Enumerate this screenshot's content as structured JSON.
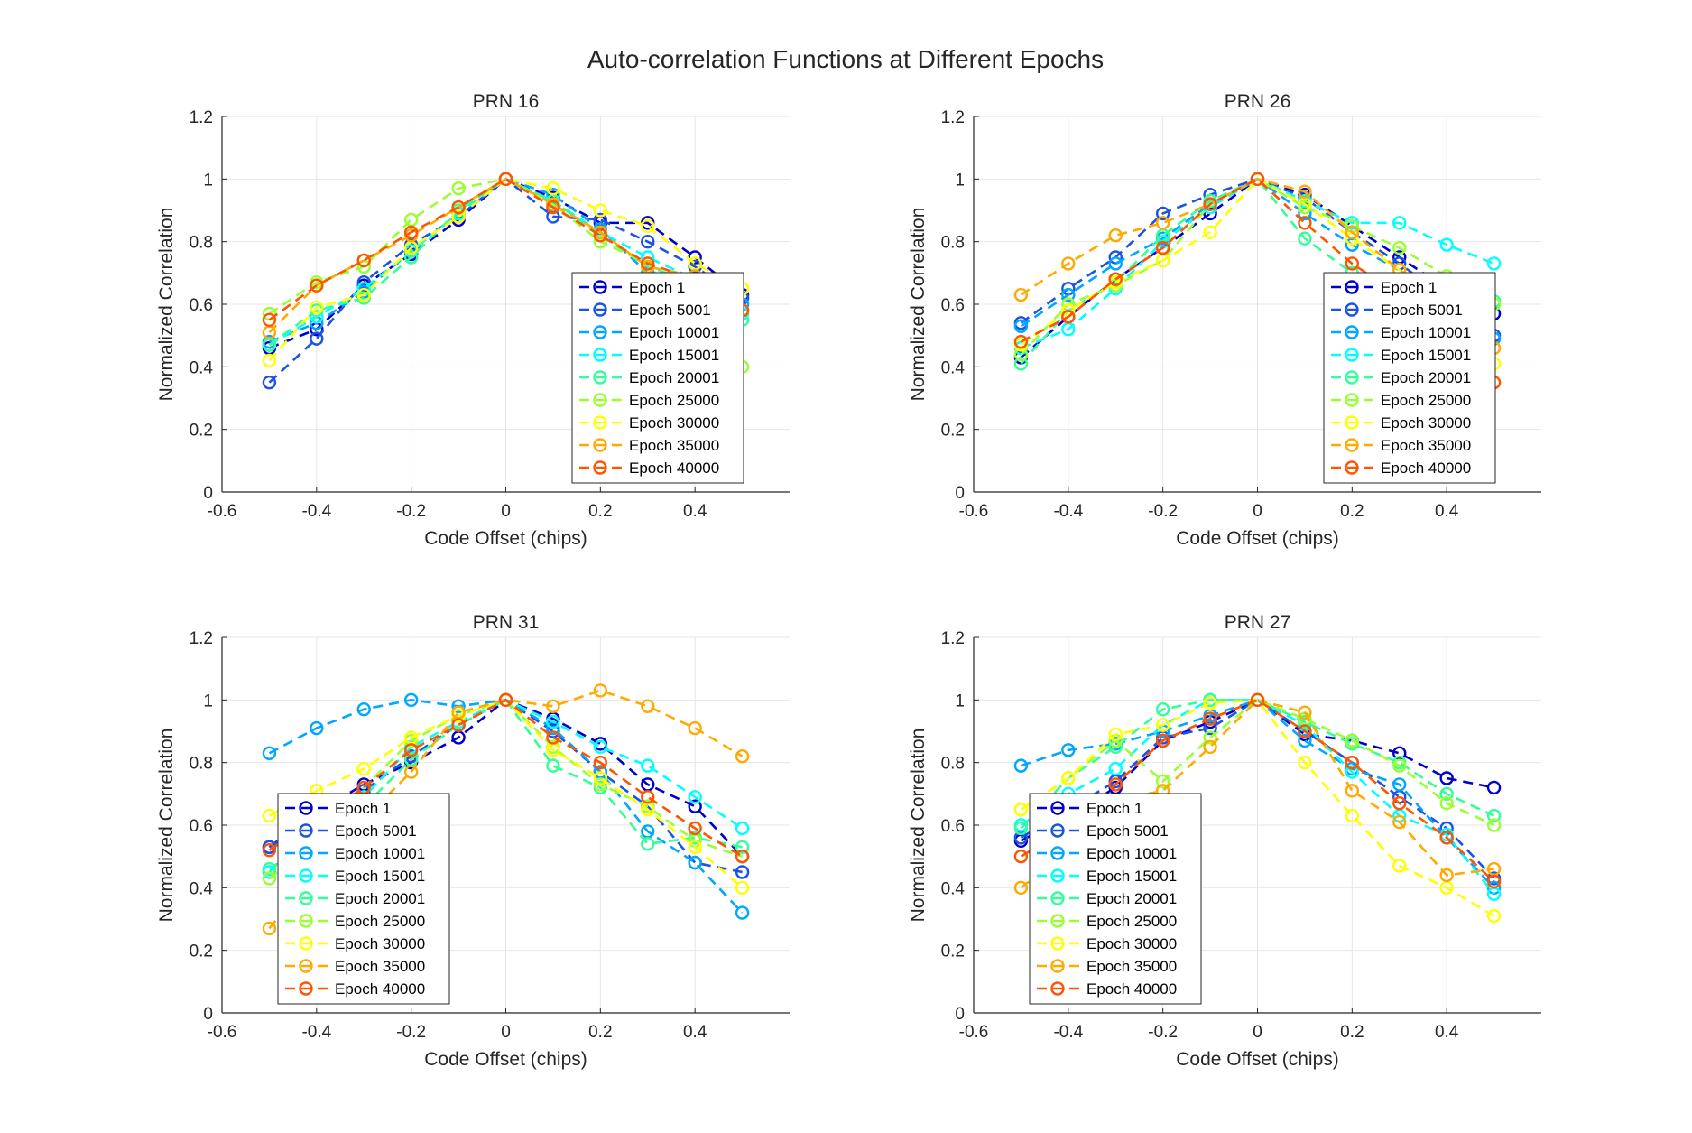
{
  "figure": {
    "title": "Auto-correlation Functions at Different Epochs"
  },
  "chart_data": [
    {
      "type": "line",
      "title": "PRN 16",
      "xlabel": "Code Offset (chips)",
      "ylabel": "Normalized Correlation",
      "xlim": [
        -0.6,
        0.6
      ],
      "ylim": [
        0,
        1.2
      ],
      "xticks": [
        "-0.6",
        "-0.4",
        "-0.2",
        "0",
        "0.2",
        "0.4"
      ],
      "yticks": [
        "0",
        "0.2",
        "0.4",
        "0.6",
        "0.8",
        "1",
        "1.2"
      ],
      "grid": true,
      "legend": "bottom-right",
      "x": [
        -0.5,
        -0.4,
        -0.3,
        -0.2,
        -0.1,
        0,
        0.1,
        0.2,
        0.3,
        0.4,
        0.5
      ],
      "series": [
        {
          "name": "Epoch 1",
          "color": "#0000cc",
          "values": [
            0.46,
            0.52,
            0.66,
            0.76,
            0.87,
            1.0,
            0.94,
            0.86,
            0.86,
            0.75,
            0.63
          ]
        },
        {
          "name": "Epoch 5001",
          "color": "#1a53e6",
          "values": [
            0.35,
            0.49,
            0.67,
            0.79,
            0.88,
            1.0,
            0.88,
            0.87,
            0.8,
            0.72,
            0.62
          ]
        },
        {
          "name": "Epoch 10001",
          "color": "#00a6ff",
          "values": [
            0.48,
            0.54,
            0.64,
            0.77,
            0.89,
            1.0,
            0.95,
            0.84,
            0.7,
            0.67,
            0.6
          ]
        },
        {
          "name": "Epoch 15001",
          "color": "#00ffff",
          "values": [
            0.47,
            0.56,
            0.65,
            0.77,
            0.89,
            1.0,
            0.93,
            0.83,
            0.75,
            0.68,
            0.57
          ]
        },
        {
          "name": "Epoch 20001",
          "color": "#33ff99",
          "values": [
            0.47,
            0.58,
            0.62,
            0.75,
            0.9,
            1.0,
            0.93,
            0.82,
            0.72,
            0.67,
            0.55
          ]
        },
        {
          "name": "Epoch 25000",
          "color": "#99ff33",
          "values": [
            0.57,
            0.67,
            0.72,
            0.87,
            0.97,
            1.0,
            0.92,
            0.8,
            0.73,
            0.55,
            0.4
          ]
        },
        {
          "name": "Epoch 30000",
          "color": "#ffff00",
          "values": [
            0.42,
            0.59,
            0.63,
            0.78,
            0.88,
            1.0,
            0.97,
            0.9,
            0.85,
            0.73,
            0.65
          ]
        },
        {
          "name": "Epoch 35000",
          "color": "#ffaa00",
          "values": [
            0.51,
            0.66,
            0.74,
            0.82,
            0.91,
            1.0,
            0.92,
            0.83,
            0.72,
            0.69,
            0.58
          ]
        },
        {
          "name": "Epoch 40000",
          "color": "#ff5500",
          "values": [
            0.55,
            0.66,
            0.74,
            0.83,
            0.91,
            1.0,
            0.91,
            0.82,
            0.73,
            0.68,
            0.58
          ]
        }
      ]
    },
    {
      "type": "line",
      "title": "PRN 26",
      "xlabel": "Code Offset (chips)",
      "ylabel": "Normalized Correlation",
      "xlim": [
        -0.6,
        0.6
      ],
      "ylim": [
        0,
        1.2
      ],
      "xticks": [
        "-0.6",
        "-0.4",
        "-0.2",
        "0",
        "0.2",
        "0.4"
      ],
      "yticks": [
        "0",
        "0.2",
        "0.4",
        "0.6",
        "0.8",
        "1",
        "1.2"
      ],
      "grid": true,
      "legend": "bottom-right",
      "x": [
        -0.5,
        -0.4,
        -0.3,
        -0.2,
        -0.1,
        0,
        0.1,
        0.2,
        0.3,
        0.4,
        0.5
      ],
      "series": [
        {
          "name": "Epoch 1",
          "color": "#0000cc",
          "values": [
            0.43,
            0.56,
            0.68,
            0.78,
            0.89,
            1.0,
            0.95,
            0.85,
            0.75,
            0.65,
            0.57
          ]
        },
        {
          "name": "Epoch 5001",
          "color": "#1a53e6",
          "values": [
            0.54,
            0.65,
            0.75,
            0.89,
            0.95,
            1.0,
            0.94,
            0.83,
            0.73,
            0.62,
            0.5
          ]
        },
        {
          "name": "Epoch 10001",
          "color": "#00a6ff",
          "values": [
            0.53,
            0.63,
            0.73,
            0.81,
            0.92,
            1.0,
            0.89,
            0.79,
            0.71,
            0.62,
            0.49
          ]
        },
        {
          "name": "Epoch 15001",
          "color": "#00ffff",
          "values": [
            0.46,
            0.52,
            0.65,
            0.8,
            0.91,
            1.0,
            0.93,
            0.86,
            0.86,
            0.79,
            0.73
          ]
        },
        {
          "name": "Epoch 20001",
          "color": "#33ff99",
          "values": [
            0.41,
            0.58,
            0.67,
            0.82,
            0.93,
            1.0,
            0.81,
            0.7,
            0.64,
            0.6,
            0.61
          ]
        },
        {
          "name": "Epoch 25000",
          "color": "#99ff33",
          "values": [
            0.44,
            0.6,
            0.66,
            0.74,
            0.92,
            1.0,
            0.91,
            0.85,
            0.78,
            0.69,
            0.6
          ]
        },
        {
          "name": "Epoch 30000",
          "color": "#ffff00",
          "values": [
            0.47,
            0.58,
            0.67,
            0.74,
            0.83,
            1.0,
            0.92,
            0.81,
            0.71,
            0.6,
            0.41
          ]
        },
        {
          "name": "Epoch 35000",
          "color": "#ffaa00",
          "values": [
            0.63,
            0.73,
            0.82,
            0.86,
            0.92,
            1.0,
            0.96,
            0.83,
            0.71,
            0.61,
            0.46
          ]
        },
        {
          "name": "Epoch 40000",
          "color": "#ff5500",
          "values": [
            0.48,
            0.56,
            0.68,
            0.78,
            0.92,
            1.0,
            0.86,
            0.73,
            0.63,
            0.5,
            0.35
          ]
        }
      ]
    },
    {
      "type": "line",
      "title": "PRN 31",
      "xlabel": "Code Offset (chips)",
      "ylabel": "Normalized Correlation",
      "xlim": [
        -0.6,
        0.6
      ],
      "ylim": [
        0,
        1.2
      ],
      "xticks": [
        "-0.6",
        "-0.4",
        "-0.2",
        "0",
        "0.2",
        "0.4"
      ],
      "yticks": [
        "0",
        "0.2",
        "0.4",
        "0.6",
        "0.8",
        "1",
        "1.2"
      ],
      "grid": true,
      "legend": "bottom-left",
      "x": [
        -0.5,
        -0.4,
        -0.3,
        -0.2,
        -0.1,
        0,
        0.1,
        0.2,
        0.3,
        0.4,
        0.5
      ],
      "series": [
        {
          "name": "Epoch 1",
          "color": "#0000cc",
          "values": [
            0.53,
            0.64,
            0.73,
            0.8,
            0.88,
            1.0,
            0.94,
            0.86,
            0.73,
            0.66,
            0.5
          ]
        },
        {
          "name": "Epoch 5001",
          "color": "#1a53e6",
          "values": [
            0.53,
            0.62,
            0.71,
            0.82,
            0.92,
            1.0,
            0.9,
            0.77,
            0.66,
            0.48,
            0.45
          ]
        },
        {
          "name": "Epoch 10001",
          "color": "#00a6ff",
          "values": [
            0.83,
            0.91,
            0.97,
            1.0,
            0.98,
            1.0,
            0.91,
            0.77,
            0.58,
            0.48,
            0.32
          ]
        },
        {
          "name": "Epoch 15001",
          "color": "#00ffff",
          "values": [
            0.45,
            0.6,
            0.69,
            0.85,
            0.93,
            1.0,
            0.93,
            0.85,
            0.79,
            0.69,
            0.59
          ]
        },
        {
          "name": "Epoch 20001",
          "color": "#33ff99",
          "values": [
            0.46,
            0.56,
            0.66,
            0.81,
            0.92,
            1.0,
            0.79,
            0.72,
            0.54,
            0.56,
            0.53
          ]
        },
        {
          "name": "Epoch 25000",
          "color": "#99ff33",
          "values": [
            0.43,
            0.55,
            0.72,
            0.87,
            0.95,
            1.0,
            0.85,
            0.73,
            0.66,
            0.55,
            0.5
          ]
        },
        {
          "name": "Epoch 30000",
          "color": "#ffff00",
          "values": [
            0.63,
            0.71,
            0.78,
            0.88,
            0.95,
            1.0,
            0.84,
            0.75,
            0.65,
            0.53,
            0.4
          ]
        },
        {
          "name": "Epoch 35000",
          "color": "#ffaa00",
          "values": [
            0.27,
            0.46,
            0.62,
            0.77,
            0.96,
            1.0,
            0.98,
            1.03,
            0.98,
            0.91,
            0.82
          ]
        },
        {
          "name": "Epoch 40000",
          "color": "#ff5500",
          "values": [
            0.52,
            0.62,
            0.72,
            0.84,
            0.92,
            1.0,
            0.88,
            0.8,
            0.69,
            0.59,
            0.5
          ]
        }
      ]
    },
    {
      "type": "line",
      "title": "PRN 27",
      "xlabel": "Code Offset (chips)",
      "ylabel": "Normalized Correlation",
      "xlim": [
        -0.6,
        0.6
      ],
      "ylim": [
        0,
        1.2
      ],
      "xticks": [
        "-0.6",
        "-0.4",
        "-0.2",
        "0",
        "0.2",
        "0.4"
      ],
      "yticks": [
        "0",
        "0.2",
        "0.4",
        "0.6",
        "0.8",
        "1",
        "1.2"
      ],
      "grid": true,
      "legend": "bottom-left",
      "x": [
        -0.5,
        -0.4,
        -0.3,
        -0.2,
        -0.1,
        0,
        0.1,
        0.2,
        0.3,
        0.4,
        0.5
      ],
      "series": [
        {
          "name": "Epoch 1",
          "color": "#0000cc",
          "values": [
            0.55,
            0.63,
            0.72,
            0.87,
            0.93,
            1.0,
            0.89,
            0.87,
            0.83,
            0.75,
            0.72
          ]
        },
        {
          "name": "Epoch 5001",
          "color": "#1a53e6",
          "values": [
            0.56,
            0.65,
            0.74,
            0.88,
            0.91,
            1.0,
            0.9,
            0.8,
            0.69,
            0.59,
            0.43
          ]
        },
        {
          "name": "Epoch 10001",
          "color": "#00a6ff",
          "values": [
            0.79,
            0.84,
            0.86,
            0.9,
            0.95,
            1.0,
            0.87,
            0.78,
            0.73,
            0.56,
            0.4
          ]
        },
        {
          "name": "Epoch 15001",
          "color": "#00ffff",
          "values": [
            0.6,
            0.7,
            0.78,
            0.92,
            1.0,
            1.0,
            0.92,
            0.77,
            0.63,
            0.57,
            0.38
          ]
        },
        {
          "name": "Epoch 20001",
          "color": "#33ff99",
          "values": [
            0.59,
            0.75,
            0.85,
            0.97,
            1.0,
            1.0,
            0.93,
            0.86,
            0.8,
            0.7,
            0.63
          ]
        },
        {
          "name": "Epoch 25000",
          "color": "#99ff33",
          "values": [
            0.65,
            0.75,
            0.87,
            0.74,
            0.88,
            1.0,
            0.94,
            0.87,
            0.79,
            0.67,
            0.6
          ]
        },
        {
          "name": "Epoch 30000",
          "color": "#ffff00",
          "values": [
            0.65,
            0.75,
            0.89,
            0.92,
            0.99,
            1.0,
            0.8,
            0.63,
            0.47,
            0.4,
            0.31
          ]
        },
        {
          "name": "Epoch 35000",
          "color": "#ffaa00",
          "values": [
            0.4,
            0.52,
            0.68,
            0.71,
            0.85,
            1.0,
            0.96,
            0.71,
            0.61,
            0.44,
            0.46
          ]
        },
        {
          "name": "Epoch 40000",
          "color": "#ff5500",
          "values": [
            0.5,
            0.59,
            0.73,
            0.87,
            0.94,
            1.0,
            0.9,
            0.8,
            0.67,
            0.56,
            0.42
          ]
        }
      ]
    }
  ]
}
